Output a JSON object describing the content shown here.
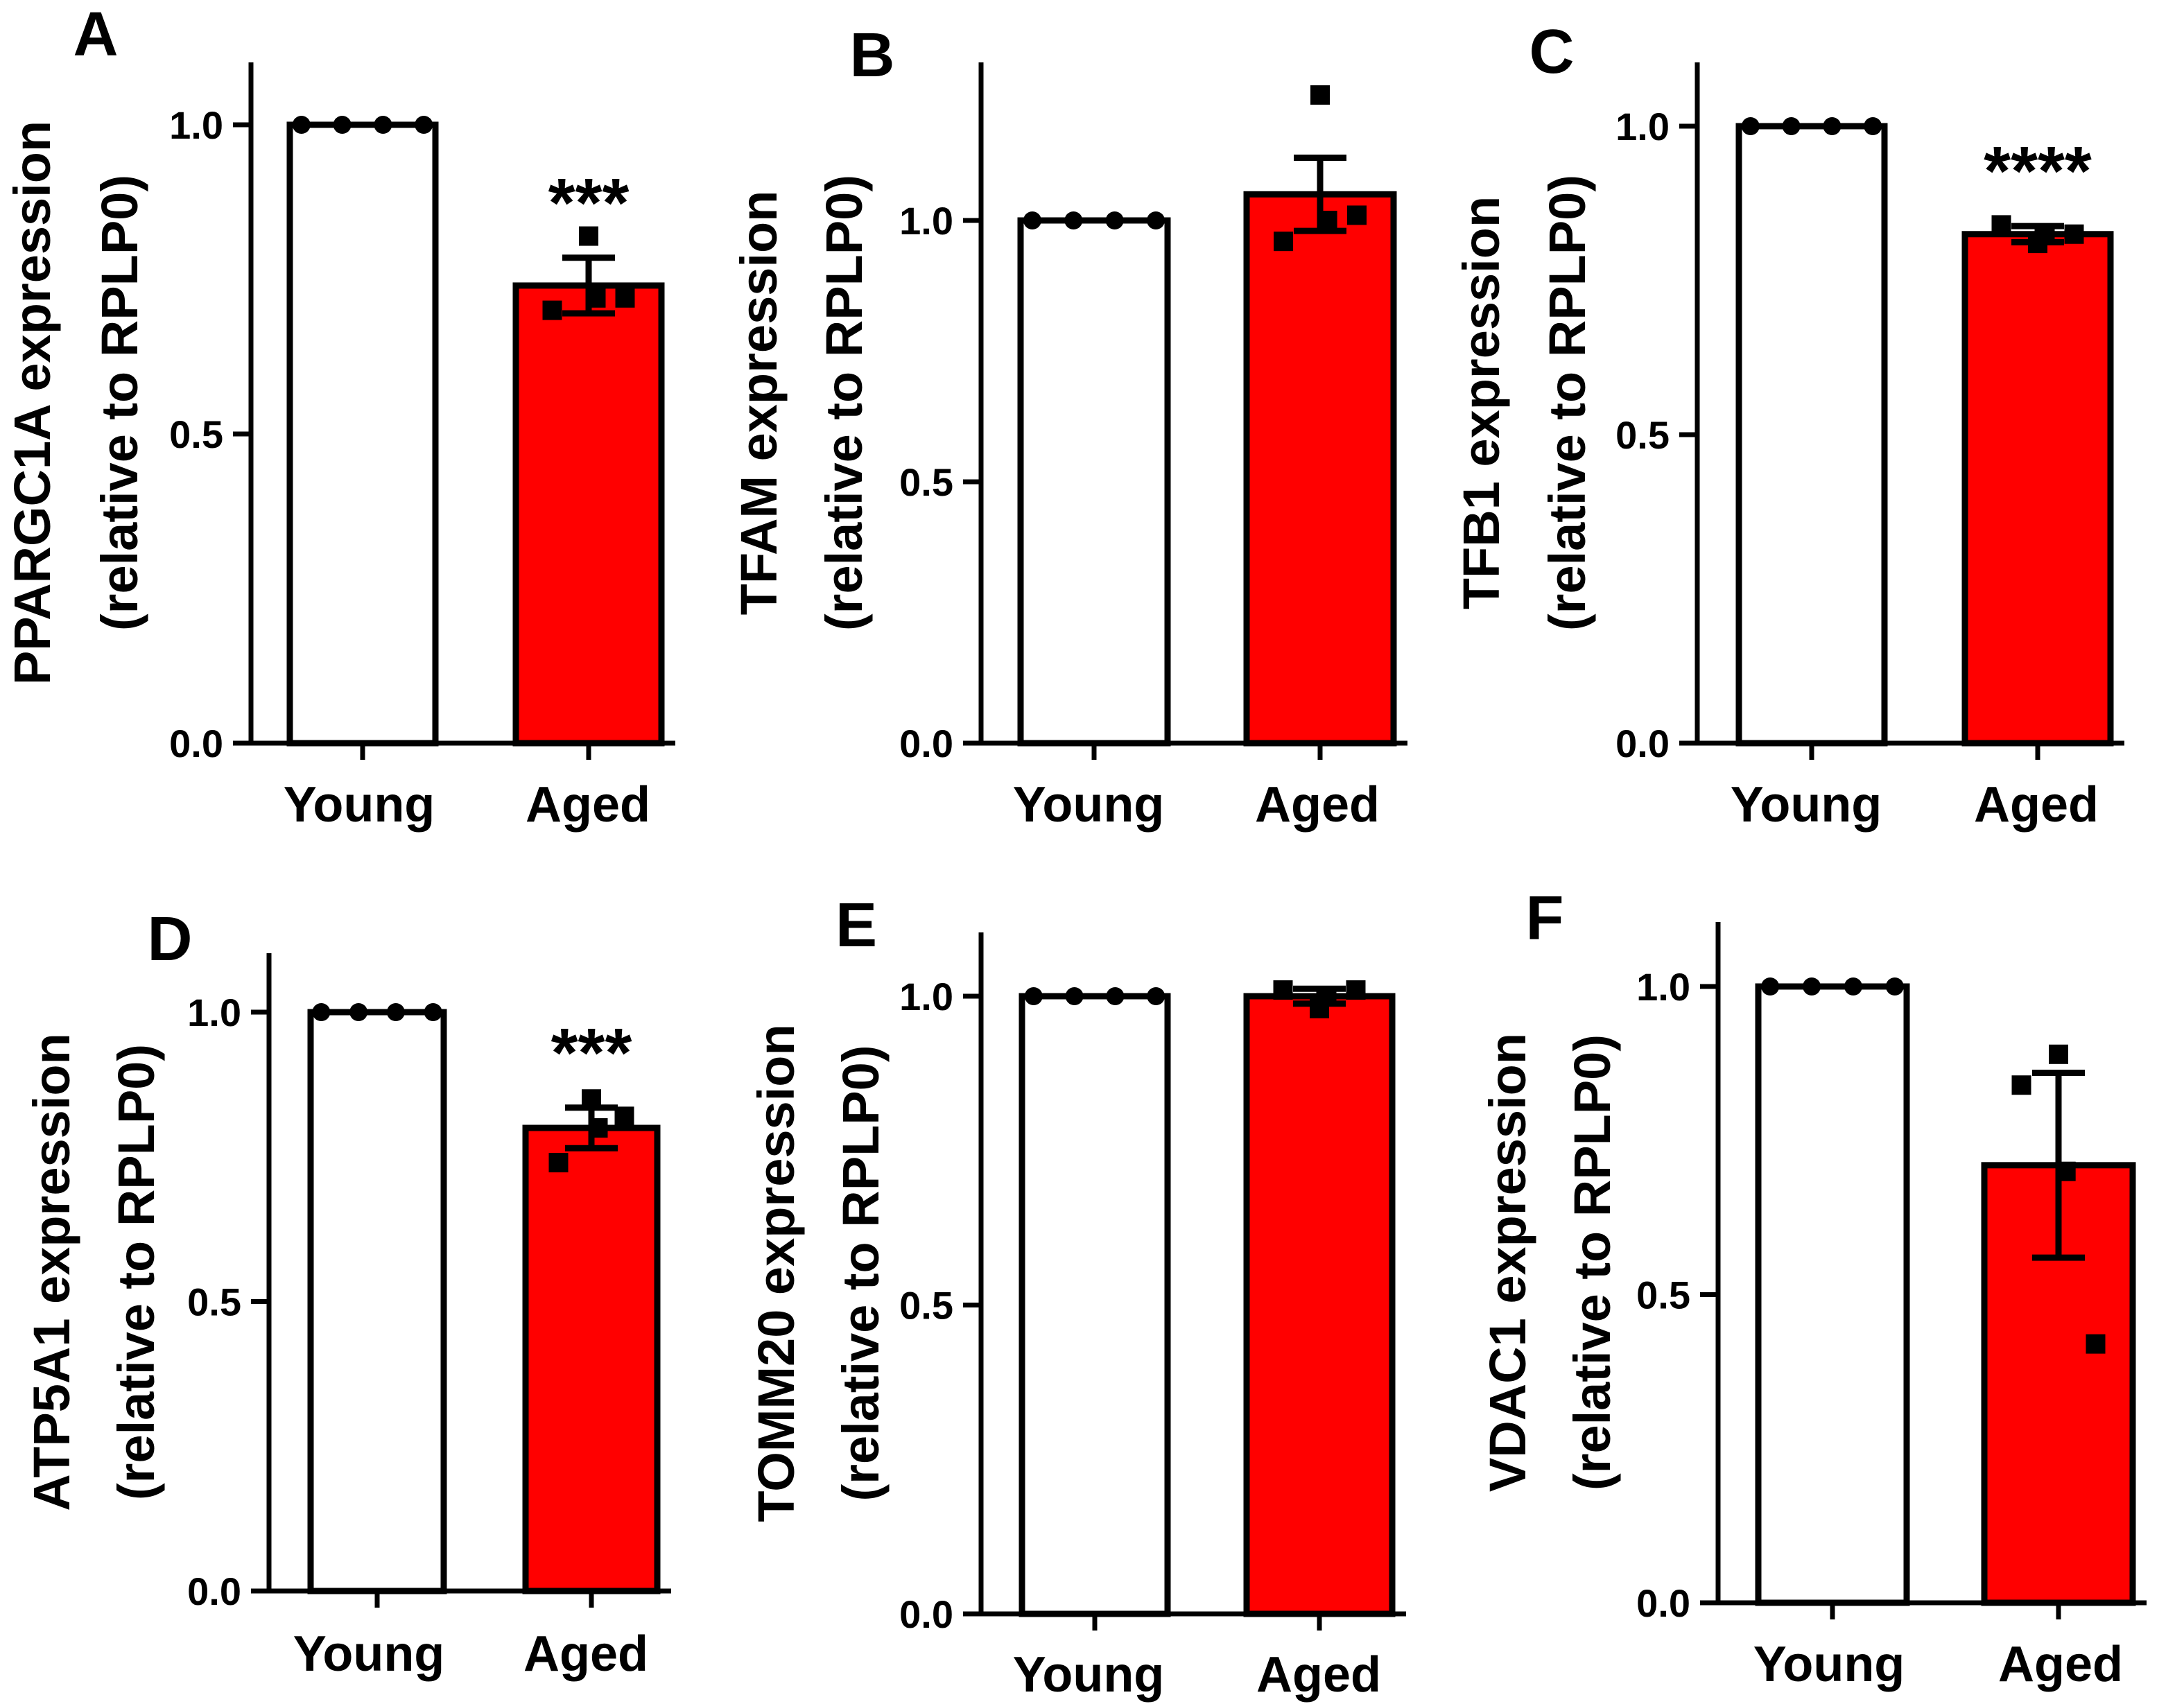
{
  "figure": {
    "domain": "bar charts with individual data points and SEM error bars"
  },
  "colors": {
    "young": "#ffffff",
    "aged": "#ff0000",
    "stroke": "#000000"
  },
  "chart_data": [
    {
      "panel": "A",
      "type": "bar",
      "ylabel": "PPARGC1A expression",
      "ylabel2": "(relative to RPLP0)",
      "ylim": [
        0,
        1.1
      ],
      "yticks": [
        0.0,
        0.5,
        1.0
      ],
      "tick_labels": [
        "0.0",
        "0.5",
        "1.0"
      ],
      "categories": [
        "Young",
        "Aged"
      ],
      "values": [
        1.0,
        0.74
      ],
      "errors": [
        0,
        0.045
      ],
      "points": [
        [
          1.0,
          1.0,
          1.0,
          1.0
        ],
        [
          0.82,
          0.7,
          0.72,
          0.72
        ]
      ],
      "significance": "***"
    },
    {
      "panel": "B",
      "type": "bar",
      "ylabel": "TFAM expression",
      "ylabel2": "(relative to RPLP0)",
      "ylim": [
        0,
        1.3
      ],
      "yticks": [
        0.0,
        0.5,
        1.0
      ],
      "tick_labels": [
        "0.0",
        "0.5",
        "1.0"
      ],
      "categories": [
        "Young",
        "Aged"
      ],
      "values": [
        1.0,
        1.05
      ],
      "errors": [
        0,
        0.07
      ],
      "points": [
        [
          1.0,
          1.0,
          1.0,
          1.0
        ],
        [
          1.24,
          0.96,
          1.01,
          1.0
        ]
      ],
      "significance": ""
    },
    {
      "panel": "C",
      "type": "bar",
      "ylabel": "TFB1 expression",
      "ylabel2": "(relative to RPLP0)",
      "ylim": [
        0,
        1.1
      ],
      "yticks": [
        0.0,
        0.5,
        1.0
      ],
      "tick_labels": [
        "0.0",
        "0.5",
        "1.0"
      ],
      "categories": [
        "Young",
        "Aged"
      ],
      "values": [
        1.0,
        0.825
      ],
      "errors": [
        0,
        0.013
      ],
      "points": [
        [
          1.0,
          1.0,
          1.0,
          1.0
        ],
        [
          0.81,
          0.84,
          0.825,
          0.825
        ]
      ],
      "significance": "****"
    },
    {
      "panel": "D",
      "type": "bar",
      "ylabel": "ATP5A1 expression",
      "ylabel2": "(relative to RPLP0)",
      "ylim": [
        0,
        1.1
      ],
      "yticks": [
        0.0,
        0.5,
        1.0
      ],
      "tick_labels": [
        "0.0",
        "0.5",
        "1.0"
      ],
      "categories": [
        "Young",
        "Aged"
      ],
      "values": [
        1.0,
        0.8
      ],
      "errors": [
        0,
        0.035
      ],
      "points": [
        [
          1.0,
          1.0,
          1.0,
          1.0
        ],
        [
          0.85,
          0.74,
          0.82,
          0.8
        ]
      ],
      "significance": "***"
    },
    {
      "panel": "E",
      "type": "bar",
      "ylabel": "TOMM20 expression",
      "ylabel2": "(relative to RPLP0)",
      "ylim": [
        0,
        1.1
      ],
      "yticks": [
        0.0,
        0.5,
        1.0
      ],
      "tick_labels": [
        "0.0",
        "0.5",
        "1.0"
      ],
      "categories": [
        "Young",
        "Aged"
      ],
      "values": [
        1.0,
        1.0
      ],
      "errors": [
        0,
        0.012
      ],
      "points": [
        [
          1.0,
          1.0,
          1.0,
          1.0
        ],
        [
          0.98,
          1.01,
          1.01,
          1.0
        ]
      ],
      "significance": ""
    },
    {
      "panel": "F",
      "type": "bar",
      "ylabel": "VDAC1 expression",
      "ylabel2": "(relative to RPLP0)",
      "ylim": [
        0,
        1.1
      ],
      "yticks": [
        0.0,
        0.5,
        1.0
      ],
      "tick_labels": [
        "0.0",
        "0.5",
        "1.0"
      ],
      "categories": [
        "Young",
        "Aged"
      ],
      "values": [
        1.0,
        0.71
      ],
      "errors": [
        0,
        0.15
      ],
      "points": [
        [
          1.0,
          1.0,
          1.0,
          1.0
        ],
        [
          0.89,
          0.84,
          0.42,
          0.7
        ]
      ],
      "significance": ""
    }
  ]
}
